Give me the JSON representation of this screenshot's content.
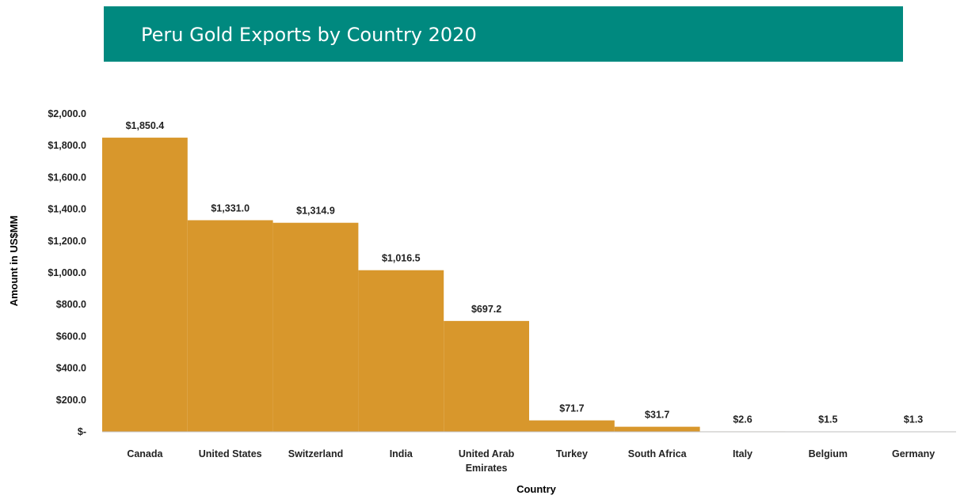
{
  "title": "Peru Gold Exports by Country 2020",
  "colors": {
    "banner": "#00897f",
    "bar": "#d8972c",
    "axis": "#bfbfbf"
  },
  "chart_data": {
    "type": "bar",
    "title": "Peru Gold Exports by Country 2020",
    "xlabel": "Country",
    "ylabel": "Amount in US$MM",
    "ylim": [
      0,
      2000
    ],
    "grid": false,
    "gap": 0,
    "categories": [
      [
        "Canada"
      ],
      [
        "United States"
      ],
      [
        "Switzerland"
      ],
      [
        "India"
      ],
      [
        "United Arab",
        "Emirates"
      ],
      [
        "Turkey"
      ],
      [
        "South Africa"
      ],
      [
        "Italy"
      ],
      [
        "Belgium"
      ],
      [
        "Germany"
      ]
    ],
    "values": [
      1850.4,
      1331.0,
      1314.9,
      1016.5,
      697.2,
      71.7,
      31.7,
      2.6,
      1.5,
      1.3
    ],
    "data_labels": [
      "$1,850.4",
      "$1,331.0",
      "$1,314.9",
      "$1,016.5",
      "$697.2",
      "$71.7",
      "$31.7",
      "$2.6",
      "$1.5",
      "$1.3"
    ],
    "yticks": [
      {
        "value": 0,
        "label": "$-"
      },
      {
        "value": 200,
        "label": "$200.0"
      },
      {
        "value": 400,
        "label": "$400.0"
      },
      {
        "value": 600,
        "label": "$600.0"
      },
      {
        "value": 800,
        "label": "$800.0"
      },
      {
        "value": 1000,
        "label": "$1,000.0"
      },
      {
        "value": 1200,
        "label": "$1,200.0"
      },
      {
        "value": 1400,
        "label": "$1,400.0"
      },
      {
        "value": 1600,
        "label": "$1,600.0"
      },
      {
        "value": 1800,
        "label": "$1,800.0"
      },
      {
        "value": 2000,
        "label": "$2,000.0"
      }
    ]
  }
}
